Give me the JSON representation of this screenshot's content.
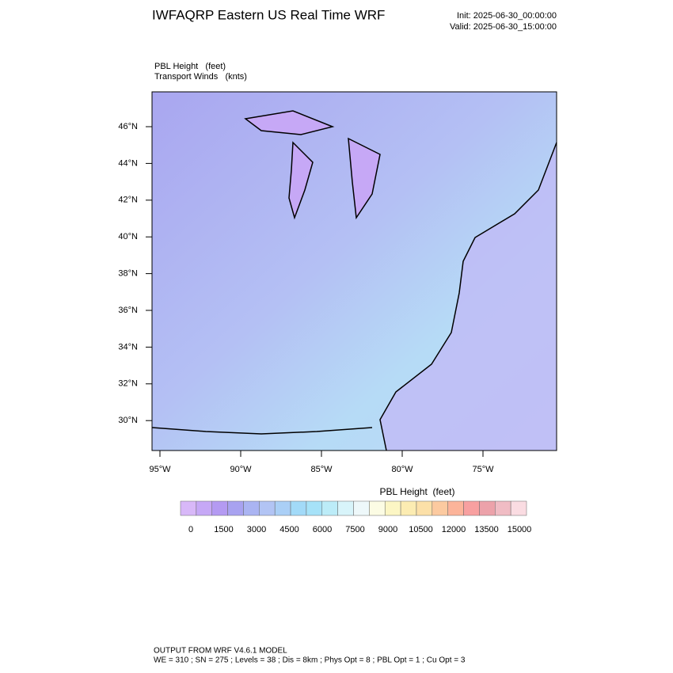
{
  "header": {
    "title": "IWFAQRP Eastern US Real Time WRF",
    "init": "Init: 2025-06-30_00:00:00",
    "valid": "Valid: 2025-06-30_15:00:00"
  },
  "map": {
    "field_label": "PBL Height   (feet)",
    "vector_label": "Transport Winds   (knts)",
    "lat_labels": [
      "46°N",
      "44°N",
      "42°N",
      "40°N",
      "38°N",
      "36°N",
      "34°N",
      "32°N",
      "30°N"
    ],
    "lon_labels": [
      "95°W",
      "90°W",
      "85°W",
      "80°W",
      "75°W"
    ]
  },
  "colorbar": {
    "title": "PBL Height  (feet)",
    "ticks": [
      0,
      1500,
      3000,
      4500,
      6000,
      7500,
      9000,
      10500,
      12000,
      13500,
      15000
    ],
    "colors": [
      "#d8b8f8",
      "#c6a8f6",
      "#b49af2",
      "#a8a2f0",
      "#aab4f2",
      "#b2c4f4",
      "#aacff6",
      "#a2daf8",
      "#a6e2f8",
      "#bcecf8",
      "#d8f4fa",
      "#eef8fa",
      "#fcfce4",
      "#fcf6c4",
      "#fcecb2",
      "#fce0a8",
      "#fccaa0",
      "#fcb49a",
      "#f8a0a0",
      "#eca2aa",
      "#f0bcc4",
      "#fadce2"
    ]
  },
  "footer": {
    "line1": "OUTPUT FROM WRF V4.6.1 MODEL",
    "line2": "WE = 310 ; SN = 275 ; Levels = 38 ; Dis = 8km ; Phys Opt = 8 ; PBL Opt = 1 ; Cu Opt = 3"
  }
}
